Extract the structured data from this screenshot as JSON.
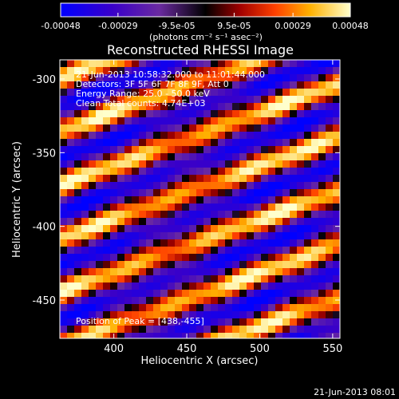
{
  "chart_data": {
    "type": "heatmap",
    "title": "Reconstructed RHESSI Image",
    "xlabel": "Heliocentric X (arcsec)",
    "ylabel": "Heliocentric Y (arcsec)",
    "x_range": [
      363,
      555
    ],
    "y_range": [
      -476,
      -287
    ],
    "x_ticks": [
      400,
      450,
      500,
      550
    ],
    "y_ticks": [
      -300,
      -350,
      -400,
      -450
    ],
    "colorbar": {
      "colormap": "red-temperature",
      "ticks": [
        "-0.00048",
        "-0.00029",
        "-9.5e-05",
        "9.5e-05",
        "0.00029",
        "0.00048"
      ],
      "range": [
        -0.00048,
        0.00048
      ],
      "unit_label": "(photons cm⁻² s⁻¹ asec⁻²)"
    },
    "info_lines": [
      "21-Jun-2013 10:58:32.000 to 11:01:44.000",
      "Detectors: 3F 5F 6F 7F 8F 9F, Att 0",
      "Energy Range: 25.0 - 50.0 keV",
      "Clean     Total counts: 4.74E+03"
    ],
    "peak_label": "Position of Peak = [438,-455]",
    "peak_position": [
      438,
      -455
    ],
    "image_description": "Diagonal striped artifact pattern: bright yellow/white ridges alternating with dark purple/blue troughs, oriented from upper-left toward lower-right."
  },
  "footer": {
    "timestamp": "21-Jun-2013 08:01"
  }
}
